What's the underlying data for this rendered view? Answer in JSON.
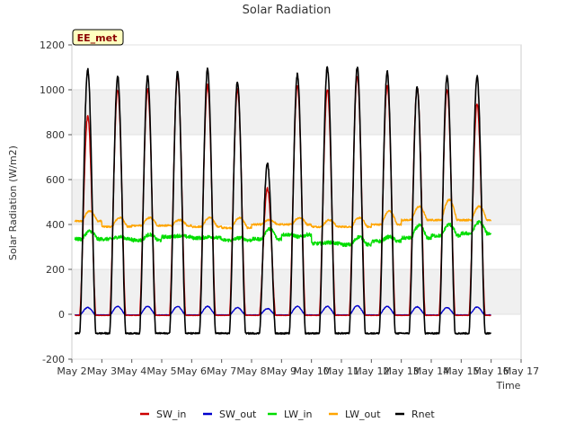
{
  "chart_data": {
    "type": "line",
    "title": "Solar Radiation",
    "xlabel": "Time",
    "ylabel": "Solar Radiation (W/m2)",
    "station_label": "EE_met",
    "ylim": [
      -200,
      1200
    ],
    "yticks": [
      -200,
      0,
      200,
      400,
      600,
      800,
      1000,
      1200
    ],
    "xlim_days": [
      2,
      17
    ],
    "xticks": [
      {
        "day": 2,
        "label": "May 2"
      },
      {
        "day": 3,
        "label": "May 3"
      },
      {
        "day": 4,
        "label": "May 4"
      },
      {
        "day": 5,
        "label": "May 5"
      },
      {
        "day": 6,
        "label": "May 6"
      },
      {
        "day": 7,
        "label": "May 7"
      },
      {
        "day": 8,
        "label": "May 8"
      },
      {
        "day": 9,
        "label": "May 9"
      },
      {
        "day": 10,
        "label": "May 10"
      },
      {
        "day": 11,
        "label": "May 11"
      },
      {
        "day": 12,
        "label": "May 12"
      },
      {
        "day": 13,
        "label": "May 13"
      },
      {
        "day": 14,
        "label": "May 14"
      },
      {
        "day": 15,
        "label": "May 15"
      },
      {
        "day": 16,
        "label": "May 16"
      },
      {
        "day": 17,
        "label": "May 17"
      }
    ],
    "grid": true,
    "legend_position": "bottom",
    "days": [
      2,
      3,
      4,
      5,
      6,
      7,
      8,
      9,
      10,
      11,
      12,
      13,
      14,
      15
    ],
    "series": [
      {
        "name": "SW_in",
        "color": "#cc0000",
        "night": -5,
        "peaks": [
          880,
          1000,
          1000,
          1060,
          1020,
          1000,
          560,
          1020,
          1000,
          1060,
          1020,
          1010,
          1000,
          940
        ]
      },
      {
        "name": "SW_out",
        "color": "#0000cc",
        "night": -3,
        "peaks": [
          30,
          35,
          35,
          35,
          35,
          30,
          25,
          35,
          35,
          38,
          35,
          33,
          30,
          32
        ]
      },
      {
        "name": "LW_in",
        "color": "#00dd00",
        "day_values": [
          370,
          345,
          355,
          350,
          345,
          340,
          380,
          345,
          320,
          345,
          345,
          395,
          400,
          410
        ],
        "night_values": [
          335,
          335,
          330,
          345,
          340,
          330,
          335,
          355,
          315,
          310,
          325,
          340,
          350,
          360
        ]
      },
      {
        "name": "LW_out",
        "color": "#ffa500",
        "day_values": [
          460,
          430,
          430,
          420,
          430,
          430,
          420,
          430,
          420,
          430,
          460,
          480,
          510,
          480
        ],
        "night_values": [
          415,
          390,
          395,
          395,
          390,
          385,
          400,
          400,
          390,
          390,
          400,
          420,
          420,
          420
        ]
      },
      {
        "name": "Rnet",
        "color": "#000000",
        "night": -85,
        "peaks": [
          1090,
          1060,
          1060,
          1080,
          1090,
          1035,
          670,
          1070,
          1100,
          1100,
          1080,
          1010,
          1060,
          1060
        ]
      }
    ]
  }
}
